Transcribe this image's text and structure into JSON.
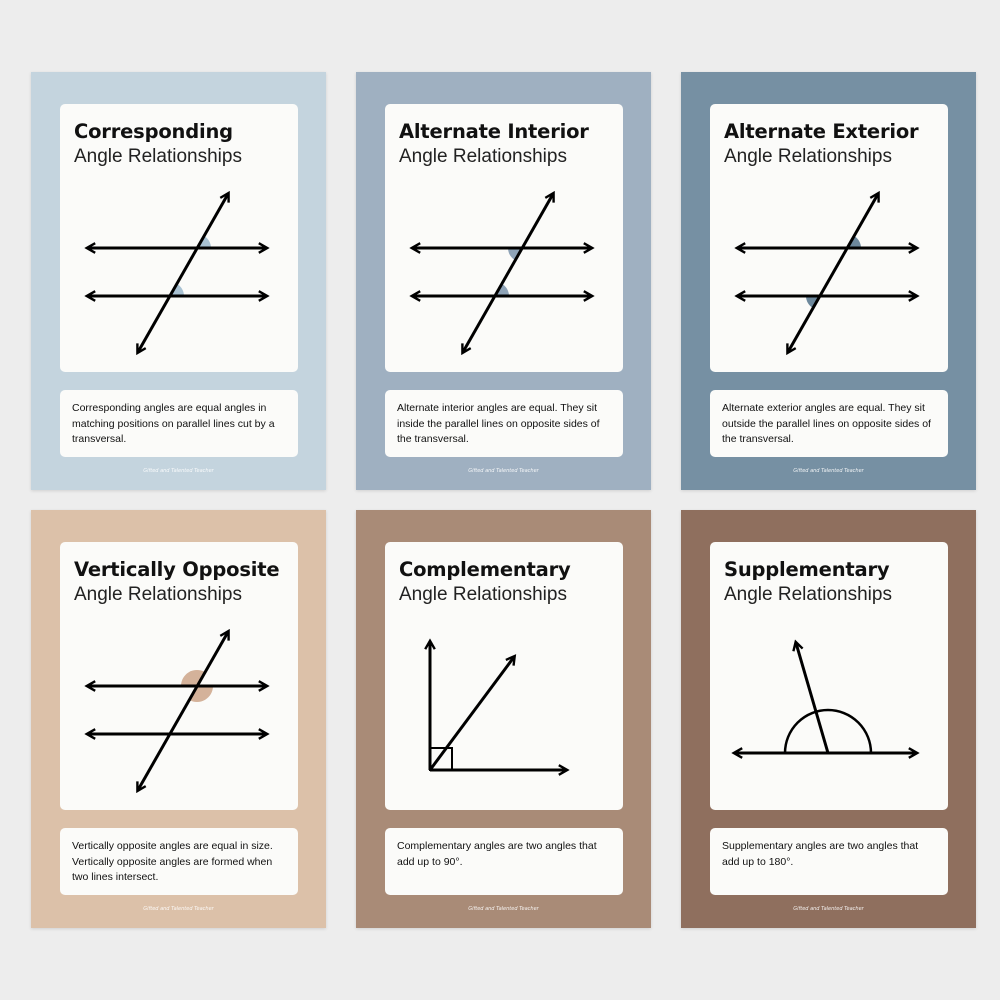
{
  "subtitle": "Angle Relationships",
  "logo_text": "Gifted and Talented Teacher",
  "cards": [
    {
      "title": "Corresponding",
      "description": "Corresponding angles are equal angles in matching positions on parallel lines cut by a transversal.",
      "bg": "#c4d4de",
      "accent": "#a9c2d3"
    },
    {
      "title": "Alternate Interior",
      "description": "Alternate interior angles are equal. They sit inside the parallel lines on opposite sides of the transversal.",
      "bg": "#9fb0c1",
      "accent": "#8ea3b7"
    },
    {
      "title": "Alternate Exterior",
      "description": "Alternate exterior angles are equal. They sit outside the parallel lines on opposite sides of the transversal.",
      "bg": "#7690a3",
      "accent": "#6d889c"
    },
    {
      "title": "Vertically Opposite",
      "description": "Vertically opposite angles are equal in size. Vertically opposite angles are formed when two lines intersect.",
      "bg": "#dcc1a9",
      "accent": "#d4b29a"
    },
    {
      "title": "Complementary",
      "description": "Complementary angles are two angles that add up to 90°.",
      "bg": "#a98b77",
      "accent": "#000000"
    },
    {
      "title": "Supplementary",
      "description": "Supplementary angles are two angles that add up to 180°.",
      "bg": "#8f6f5e",
      "accent": "#000000"
    }
  ]
}
